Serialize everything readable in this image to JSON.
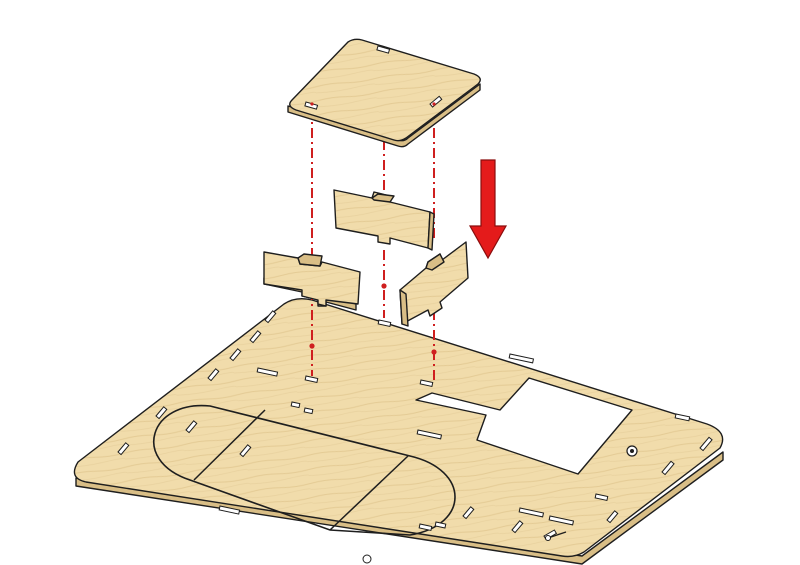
{
  "diagram": {
    "type": "exploded-assembly-view",
    "parts": [
      "top-plate",
      "divider-left",
      "divider-middle",
      "divider-right",
      "base-board"
    ],
    "direction": "down"
  },
  "colors": {
    "wood": "#f1dcab",
    "wood_edge": "#d9be86",
    "grain": "#e2c78f",
    "outline": "#1e1e1e",
    "guide_line": "#cf1f1f",
    "arrow": "#e41b1b",
    "cutout": "#ffffff"
  },
  "icons": {
    "arrow": "arrow-down-icon",
    "lines": "dash-dot-guide"
  }
}
